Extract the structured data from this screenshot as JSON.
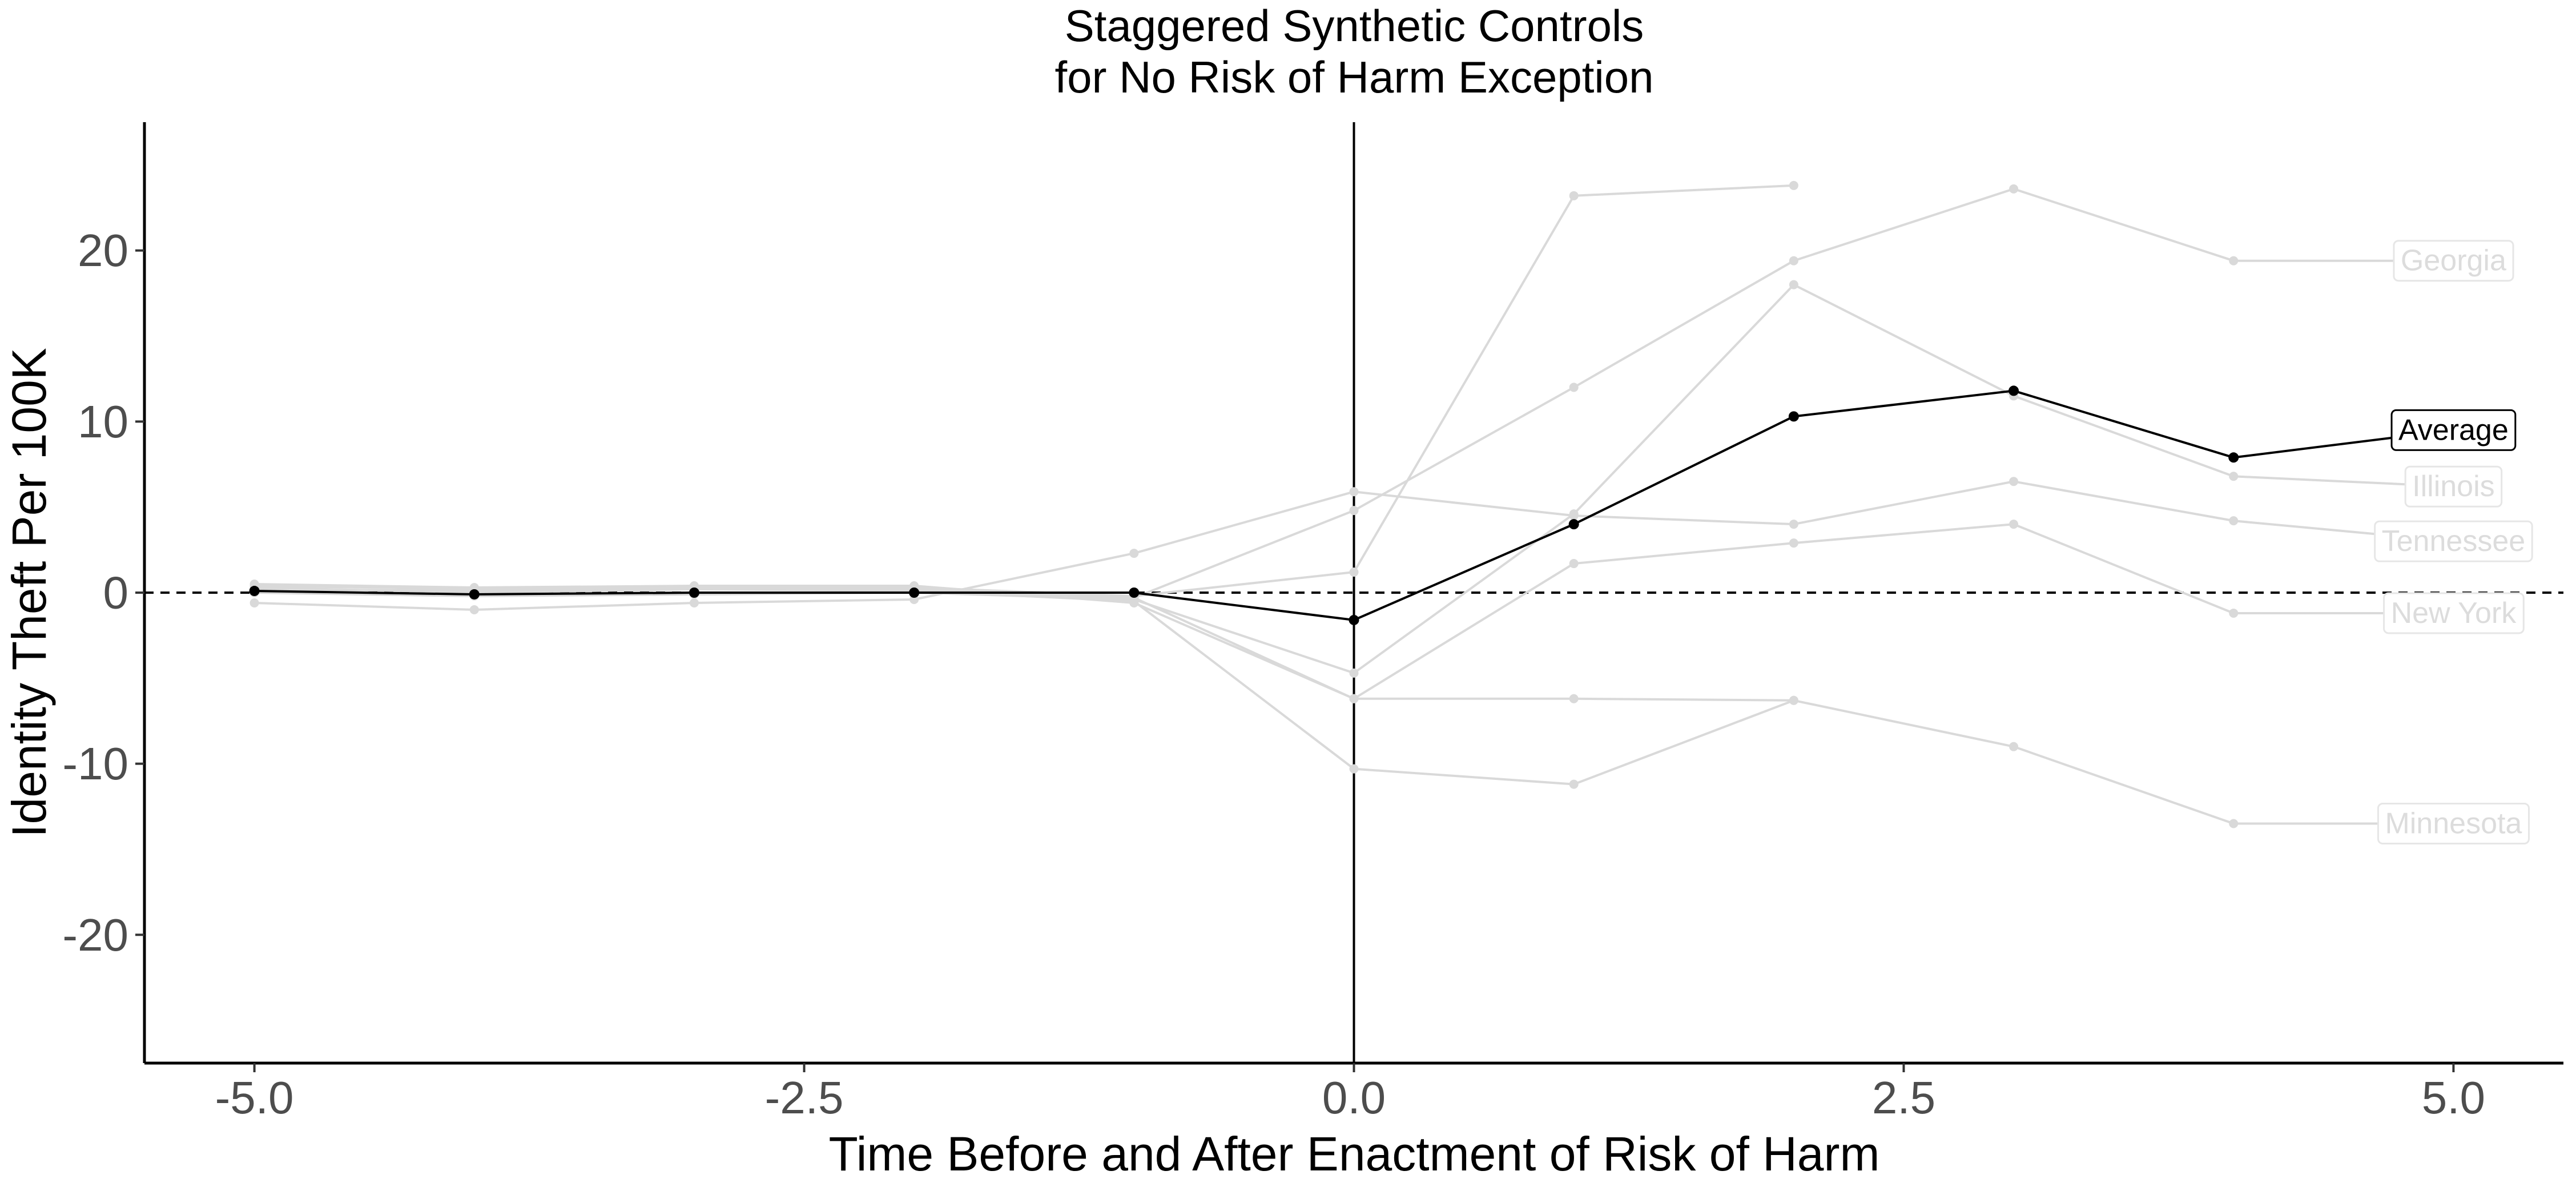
{
  "chart_data": {
    "type": "line",
    "title_line1": "Staggered Synthetic Controls",
    "title_line2": "for No Risk of Harm Exception",
    "xlabel": "Time Before and After Enactment of Risk of Harm",
    "ylabel": "Identity Theft Per 100K",
    "xlim": [
      -5.5,
      5.5
    ],
    "ylim": [
      -27.5,
      27.5
    ],
    "x_ticks": [
      -5.0,
      -2.5,
      0.0,
      2.5,
      5.0
    ],
    "x_tick_labels": [
      "-5.0",
      "-2.5",
      "0.0",
      "2.5",
      "5.0"
    ],
    "y_ticks": [
      20,
      10,
      0,
      -10,
      -20
    ],
    "y_tick_labels": [
      "20",
      "10",
      "0",
      "-10",
      "-20"
    ],
    "reference_lines": {
      "vertical_x": 0,
      "horizontal_y": 0
    },
    "grid": false,
    "colors": {
      "average": "#000000",
      "states": "#d9d9d9",
      "state_label": "#dcdcdc"
    },
    "average": {
      "name": "Average",
      "x": [
        -5,
        -4,
        -3,
        -2,
        -1,
        0,
        1,
        2,
        3,
        4,
        5
      ],
      "y": [
        0.1,
        -0.1,
        0.0,
        0.0,
        0.0,
        -1.6,
        4.0,
        10.3,
        11.8,
        7.9,
        9.5
      ]
    },
    "series": [
      {
        "name": "Georgia",
        "x": [
          -5,
          -4,
          -3,
          -2,
          -1,
          0,
          1,
          2,
          3,
          4,
          5
        ],
        "y": [
          0.2,
          0.1,
          0.3,
          0.2,
          -0.3,
          4.8,
          12.0,
          19.4,
          23.6,
          19.4,
          19.4
        ]
      },
      {
        "name": "Illinois",
        "x": [
          -5,
          -4,
          -3,
          -2,
          -1,
          0,
          1,
          2,
          3,
          4,
          5
        ],
        "y": [
          0.0,
          -0.2,
          -0.1,
          0.0,
          -0.4,
          -4.7,
          4.6,
          18.0,
          11.5,
          6.8,
          6.2
        ]
      },
      {
        "name": "Tennessee",
        "x": [
          -5,
          -4,
          -3,
          -2,
          -1,
          0,
          1,
          2,
          3,
          4,
          5
        ],
        "y": [
          -0.6,
          -1.0,
          -0.6,
          -0.4,
          2.3,
          5.9,
          4.5,
          4.0,
          6.5,
          4.2,
          3.0
        ]
      },
      {
        "name": "New York",
        "x": [
          -5,
          -4,
          -3,
          -2,
          -1,
          0,
          1,
          2,
          3,
          4,
          5
        ],
        "y": [
          0.5,
          0.3,
          0.4,
          0.4,
          -0.6,
          -6.2,
          1.7,
          2.9,
          4.0,
          -1.2,
          -1.2
        ]
      },
      {
        "name": "Minnesota",
        "x": [
          -5,
          -4,
          -3,
          -2,
          -1,
          0,
          1,
          2,
          3,
          4,
          5
        ],
        "y": [
          0.3,
          0.0,
          0.2,
          0.1,
          -0.5,
          -10.3,
          -11.2,
          -6.3,
          -9.0,
          -13.5,
          -13.5
        ]
      },
      {
        "name": "",
        "x": [
          -5,
          -4,
          -3,
          -2,
          -1,
          0,
          1,
          2
        ],
        "y": [
          0.4,
          0.2,
          0.3,
          0.3,
          -0.2,
          1.2,
          23.2,
          23.8
        ]
      },
      {
        "name": "",
        "x": [
          -1,
          0,
          1,
          2
        ],
        "y": [
          -0.3,
          -6.2,
          -6.2,
          -6.3
        ]
      }
    ]
  }
}
